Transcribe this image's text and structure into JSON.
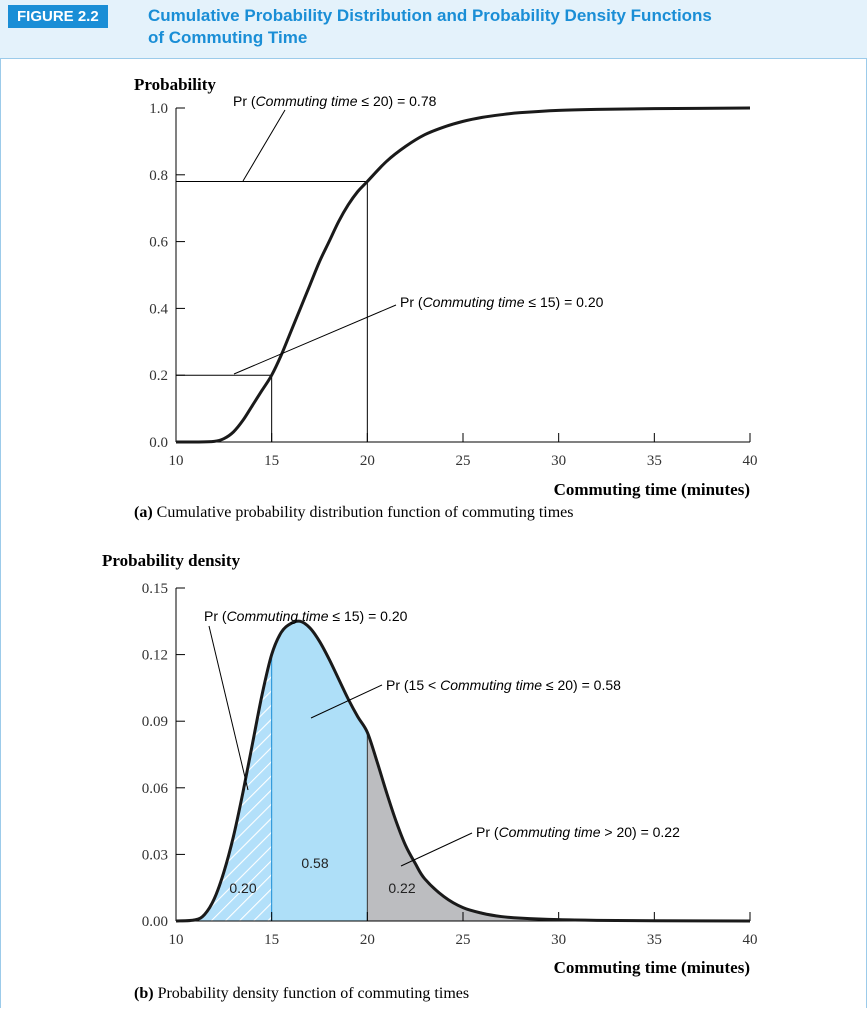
{
  "figure": {
    "badge": "FIGURE 2.2",
    "title_line1": "Cumulative Probability Distribution and Probability Density Functions",
    "title_line2": "of Commuting Time"
  },
  "chart_data": [
    {
      "id": "a",
      "type": "line",
      "ylabel": "Probability",
      "xlabel": "Commuting time (minutes)",
      "caption_prefix": "(a)",
      "caption_text": " Cumulative probability distribution function of commuting times",
      "xlim": [
        10,
        40
      ],
      "ylim": [
        0,
        1.0
      ],
      "x_ticks": [
        "10",
        "15",
        "20",
        "25",
        "30",
        "35",
        "40"
      ],
      "y_ticks": [
        "0.0",
        "0.2",
        "0.4",
        "0.6",
        "0.8",
        "1.0"
      ],
      "series": [
        {
          "x": [
            10,
            11,
            12,
            12.5,
            13,
            13.5,
            14,
            14.5,
            15,
            15.5,
            16,
            16.5,
            17,
            17.5,
            18,
            18.5,
            19,
            19.5,
            20,
            21,
            22,
            23,
            24,
            25,
            26,
            27,
            28,
            30,
            32,
            35,
            40
          ],
          "y": [
            0.0,
            0.0,
            0.002,
            0.01,
            0.03,
            0.065,
            0.11,
            0.155,
            0.2,
            0.26,
            0.33,
            0.4,
            0.47,
            0.54,
            0.6,
            0.66,
            0.71,
            0.75,
            0.78,
            0.84,
            0.885,
            0.92,
            0.943,
            0.96,
            0.972,
            0.98,
            0.986,
            0.993,
            0.996,
            0.998,
            1.0
          ]
        }
      ],
      "annotations": [
        {
          "text_pre": "Pr (",
          "text_italic": "Commuting time",
          "text_post": " ≤ 20) = 0.78",
          "x": 20,
          "y": 0.78
        },
        {
          "text_pre": "Pr (",
          "text_italic": "Commuting time",
          "text_post": " ≤ 15) = 0.20",
          "x": 15,
          "y": 0.2
        }
      ]
    },
    {
      "id": "b",
      "type": "area",
      "ylabel": "Probability density",
      "xlabel": "Commuting time (minutes)",
      "caption_prefix": "(b)",
      "caption_text": " Probability density function of commuting times",
      "xlim": [
        10,
        40
      ],
      "ylim": [
        0,
        0.15
      ],
      "x_ticks": [
        "10",
        "15",
        "20",
        "25",
        "30",
        "35",
        "40"
      ],
      "y_ticks": [
        "0.00",
        "0.03",
        "0.06",
        "0.09",
        "0.12",
        "0.15"
      ],
      "series": [
        {
          "x": [
            10,
            11,
            11.5,
            12,
            12.5,
            13,
            13.5,
            14,
            14.5,
            15,
            15.5,
            16,
            16.5,
            17,
            17.5,
            18,
            18.5,
            19,
            19.5,
            20,
            20.5,
            21,
            21.5,
            22,
            22.5,
            23,
            24,
            25,
            26,
            27,
            28,
            30,
            32,
            35,
            40
          ],
          "y": [
            0.0,
            0.0005,
            0.003,
            0.01,
            0.022,
            0.038,
            0.058,
            0.08,
            0.102,
            0.12,
            0.13,
            0.134,
            0.135,
            0.132,
            0.126,
            0.118,
            0.109,
            0.1,
            0.092,
            0.085,
            0.072,
            0.058,
            0.045,
            0.034,
            0.026,
            0.019,
            0.011,
            0.006,
            0.0035,
            0.002,
            0.0013,
            0.0006,
            0.0003,
            0.0001,
            0.0
          ]
        }
      ],
      "regions": [
        {
          "from": 10,
          "to": 15,
          "label": "0.20",
          "fill": "#b3e0fa",
          "hatched": true
        },
        {
          "from": 15,
          "to": 20,
          "label": "0.58",
          "fill": "#aedff8",
          "hatched": false
        },
        {
          "from": 20,
          "to": 40,
          "label": "0.22",
          "fill": "#bcbdc0",
          "hatched": false
        }
      ],
      "annotations": [
        {
          "text_pre": "Pr (",
          "text_italic": "Commuting time",
          "text_post": " ≤ 15) = 0.20"
        },
        {
          "text_pre": "Pr (15 < ",
          "text_italic": "Commuting time",
          "text_post": " ≤ 20) = 0.58"
        },
        {
          "text_pre": "Pr (",
          "text_italic": "Commuting time",
          "text_post": " > 20) = 0.22"
        }
      ]
    }
  ]
}
